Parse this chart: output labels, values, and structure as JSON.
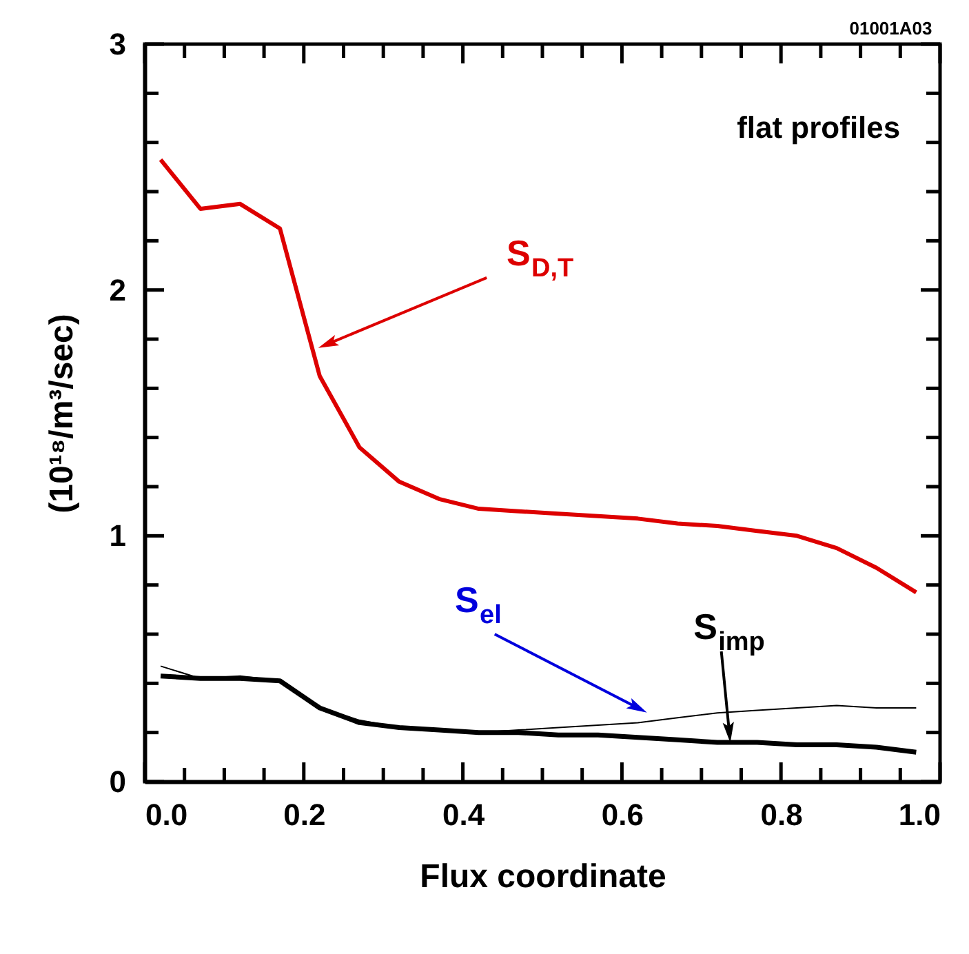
{
  "chart_data": {
    "type": "line",
    "xlabel": "Flux coordinate",
    "ylabel": "(10¹⁸/m³/sec)",
    "annotations": [
      "flat profiles",
      "01001A03"
    ],
    "x": [
      0.02,
      0.07,
      0.12,
      0.17,
      0.22,
      0.27,
      0.32,
      0.37,
      0.42,
      0.47,
      0.52,
      0.57,
      0.62,
      0.67,
      0.72,
      0.77,
      0.82,
      0.87,
      0.92,
      0.97
    ],
    "series": [
      {
        "name": "S$_{D,T}$",
        "color": "#dd0000",
        "values": [
          2.53,
          2.33,
          2.35,
          2.25,
          1.65,
          1.36,
          1.22,
          1.15,
          1.11,
          1.1,
          1.09,
          1.08,
          1.07,
          1.05,
          1.04,
          1.02,
          1.0,
          0.95,
          0.87,
          0.77
        ]
      },
      {
        "name": "S$_{el}$",
        "color": "#000000",
        "values": [
          0.47,
          0.42,
          0.43,
          0.41,
          0.3,
          0.25,
          0.22,
          0.21,
          0.2,
          0.21,
          0.22,
          0.23,
          0.24,
          0.26,
          0.28,
          0.29,
          0.3,
          0.31,
          0.3,
          0.3
        ]
      },
      {
        "name": "S$_{imp}$",
        "color": "#000000",
        "values": [
          0.43,
          0.42,
          0.42,
          0.41,
          0.3,
          0.24,
          0.22,
          0.21,
          0.2,
          0.2,
          0.19,
          0.19,
          0.18,
          0.17,
          0.16,
          0.16,
          0.15,
          0.15,
          0.14,
          0.12
        ]
      }
    ],
    "xlim": [
      0,
      1
    ],
    "ylim": [
      0,
      3
    ],
    "xticks": [
      {
        "value": 0,
        "label": "0.0"
      },
      {
        "value": 0.05,
        "label": null
      },
      {
        "value": 0.1,
        "label": null
      },
      {
        "value": 0.15,
        "label": null
      },
      {
        "value": 0.2,
        "label": "0.2"
      },
      {
        "value": 0.25,
        "label": null
      },
      {
        "value": 0.3,
        "label": null
      },
      {
        "value": 0.35,
        "label": null
      },
      {
        "value": 0.4,
        "label": "0.4"
      },
      {
        "value": 0.45,
        "label": null
      },
      {
        "value": 0.5,
        "label": null
      },
      {
        "value": 0.55,
        "label": null
      },
      {
        "value": 0.6,
        "label": "0.6"
      },
      {
        "value": 0.65,
        "label": null
      },
      {
        "value": 0.7,
        "label": null
      },
      {
        "value": 0.75,
        "label": null
      },
      {
        "value": 0.8,
        "label": "0.8"
      },
      {
        "value": 0.85,
        "label": null
      },
      {
        "value": 0.9,
        "label": null
      },
      {
        "value": 0.95,
        "label": null
      },
      {
        "value": 1,
        "label": "1.0"
      }
    ],
    "yticks": [
      0,
      {
        "value": 0.2,
        "label": null
      },
      {
        "value": 0.4,
        "label": null
      },
      {
        "value": 0.6,
        "label": null
      },
      {
        "value": 0.8,
        "label": null
      },
      1,
      {
        "value": 1.2,
        "label": null
      },
      {
        "value": 1.4,
        "label": null
      },
      {
        "value": 1.6,
        "label": null
      },
      {
        "value": 1.8,
        "label": null
      },
      2,
      {
        "value": 2.2,
        "label": null
      },
      {
        "value": 2.4,
        "label": null
      },
      {
        "value": 2.6,
        "label": null
      },
      {
        "value": 2.8,
        "label": null
      },
      3
    ],
    "grid": false,
    "legend": false,
    "marker": "none",
    "line_style": "solid"
  }
}
